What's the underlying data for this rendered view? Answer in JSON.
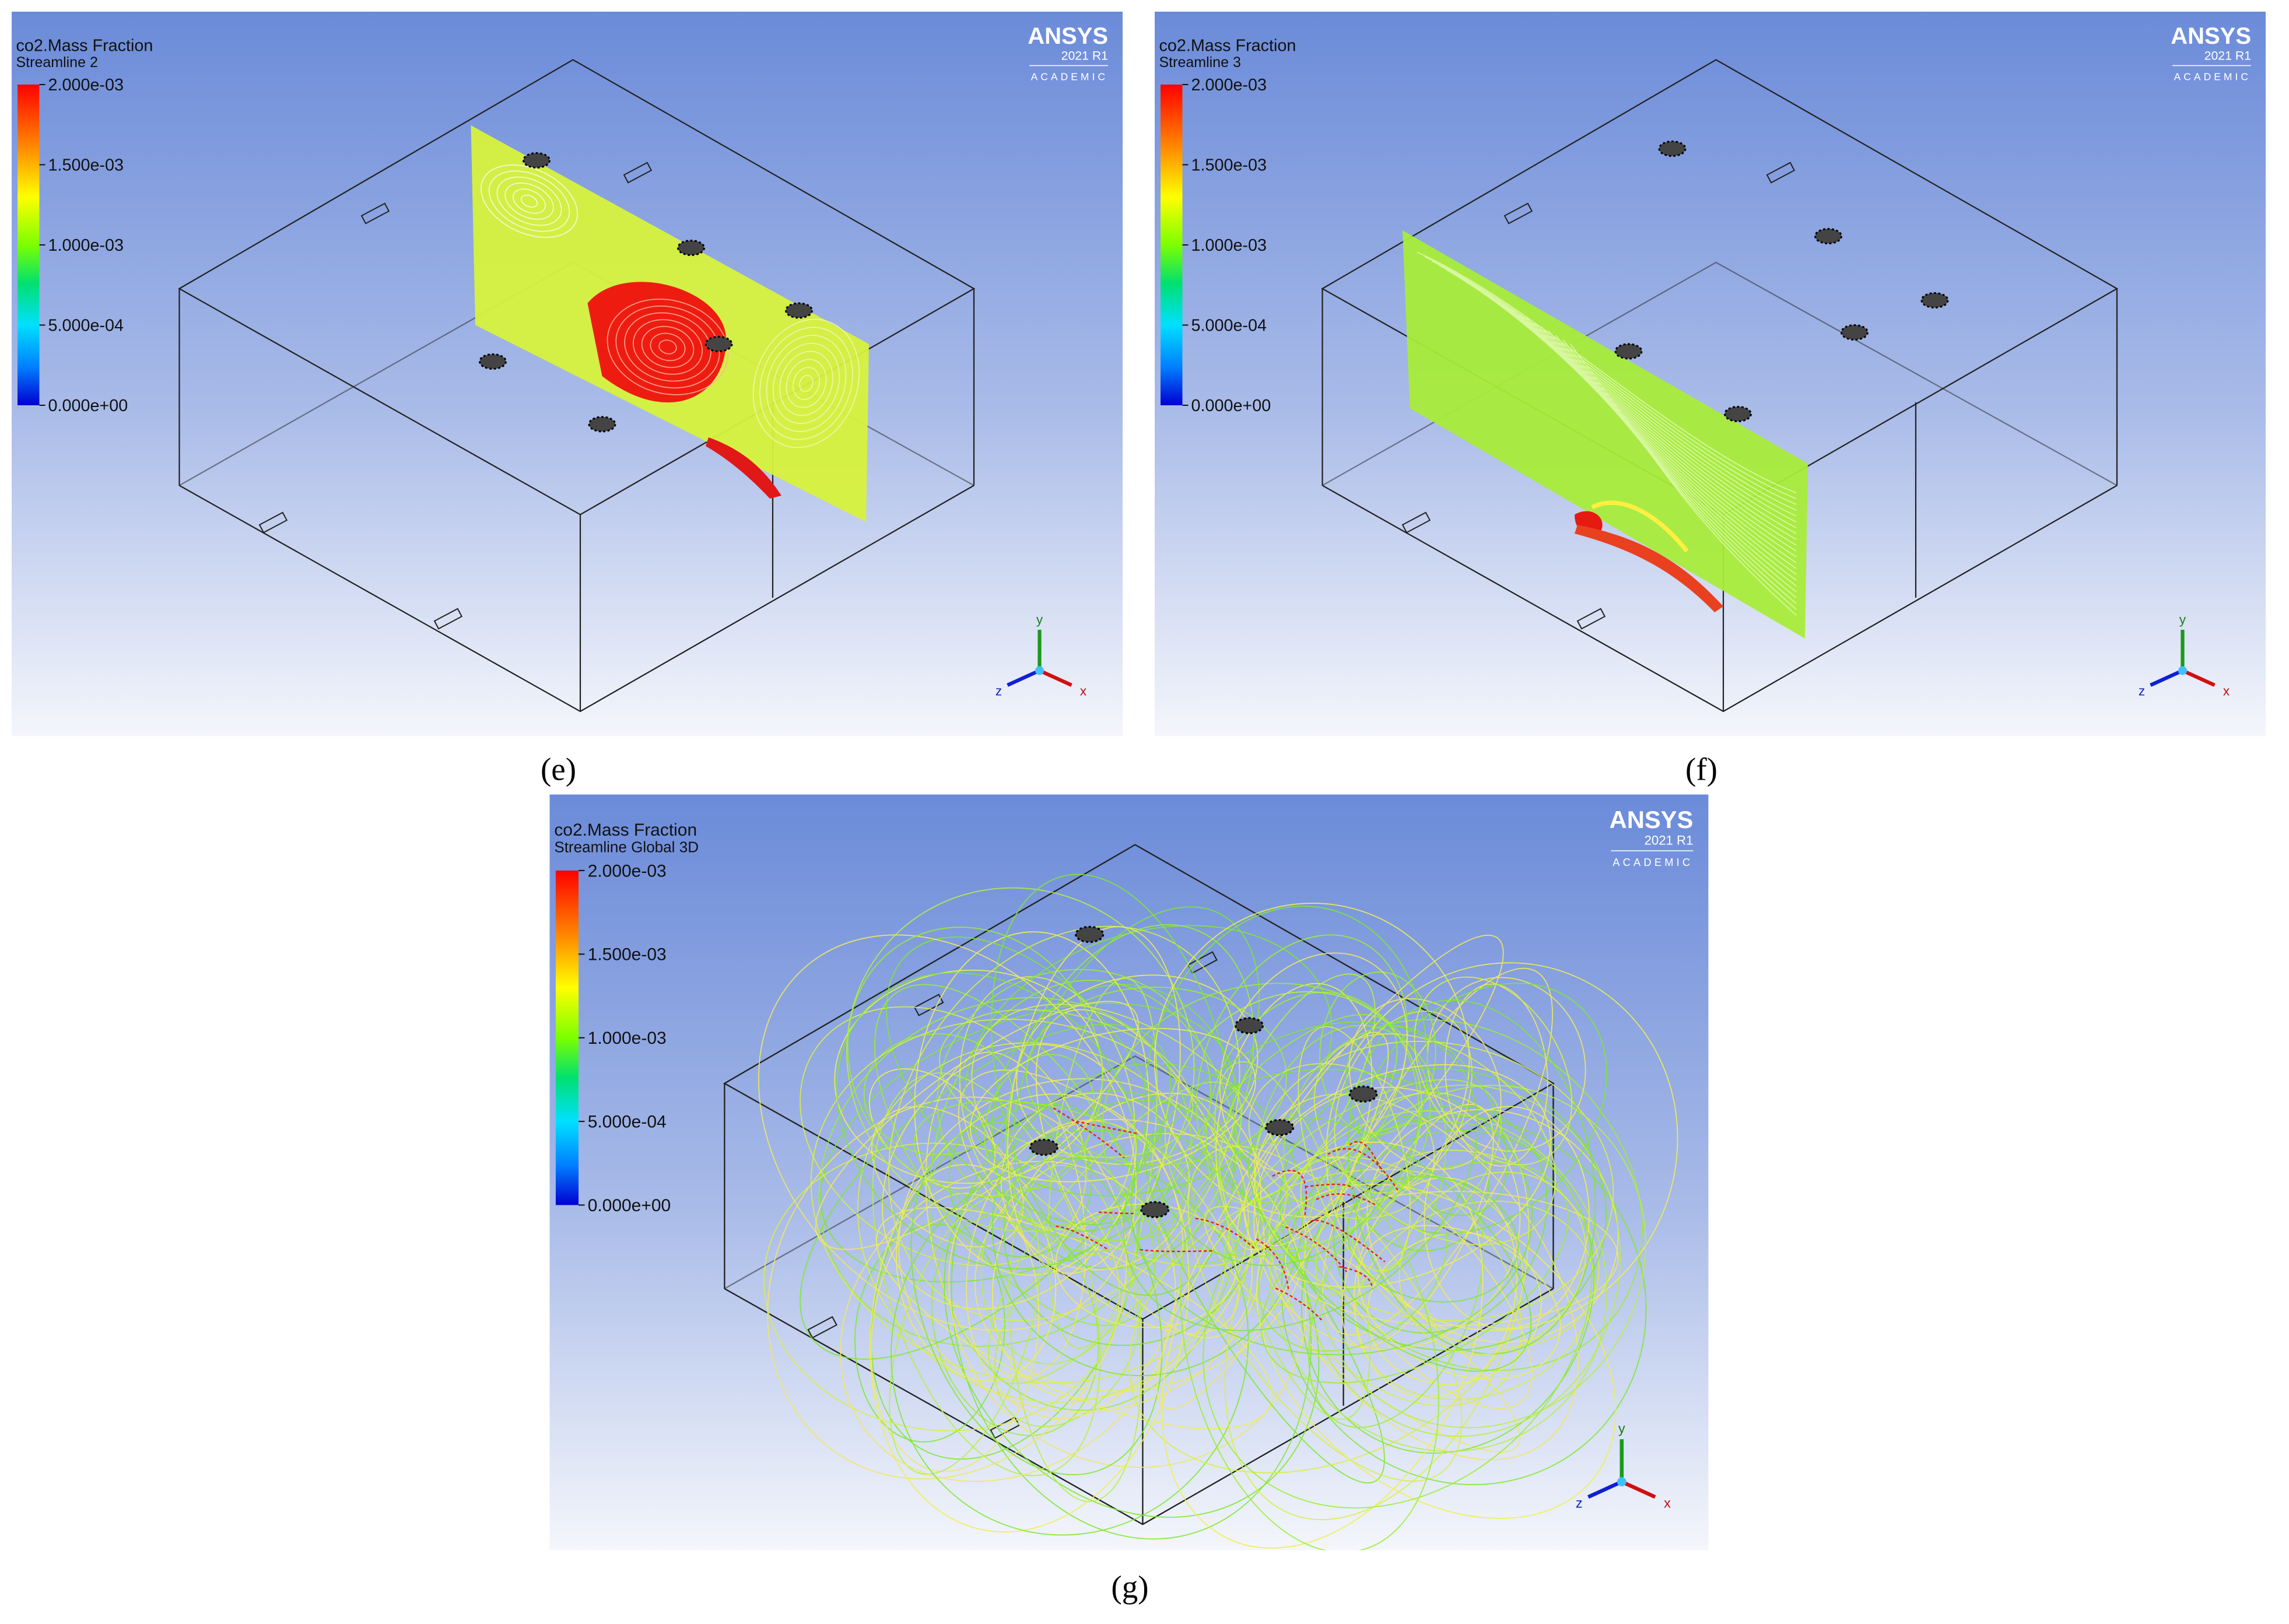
{
  "panels": [
    {
      "caption": "(e)",
      "legend": {
        "title": "co2.Mass Fraction",
        "subtitle": "Streamline 2",
        "labels": [
          "2.000e-03",
          "1.500e-03",
          "1.000e-03",
          "5.000e-04",
          "0.000e+00"
        ]
      },
      "brand": {
        "name": "ANSYS",
        "version": "2021 R1",
        "edition": "ACADEMIC"
      },
      "axes": {
        "x": "x",
        "y": "y",
        "z": "z"
      }
    },
    {
      "caption": "(f)",
      "legend": {
        "title": "co2.Mass Fraction",
        "subtitle": "Streamline 3",
        "labels": [
          "2.000e-03",
          "1.500e-03",
          "1.000e-03",
          "5.000e-04",
          "0.000e+00"
        ]
      },
      "brand": {
        "name": "ANSYS",
        "version": "2021 R1",
        "edition": "ACADEMIC"
      },
      "axes": {
        "x": "x",
        "y": "y",
        "z": "z"
      }
    },
    {
      "caption": "(g)",
      "legend": {
        "title": "co2.Mass Fraction",
        "subtitle": "Streamline Global 3D",
        "labels": [
          "2.000e-03",
          "1.500e-03",
          "1.000e-03",
          "5.000e-04",
          "0.000e+00"
        ]
      },
      "brand": {
        "name": "ANSYS",
        "version": "2021 R1",
        "edition": "ACADEMIC"
      },
      "axes": {
        "x": "x",
        "y": "y",
        "z": "z"
      }
    }
  ]
}
